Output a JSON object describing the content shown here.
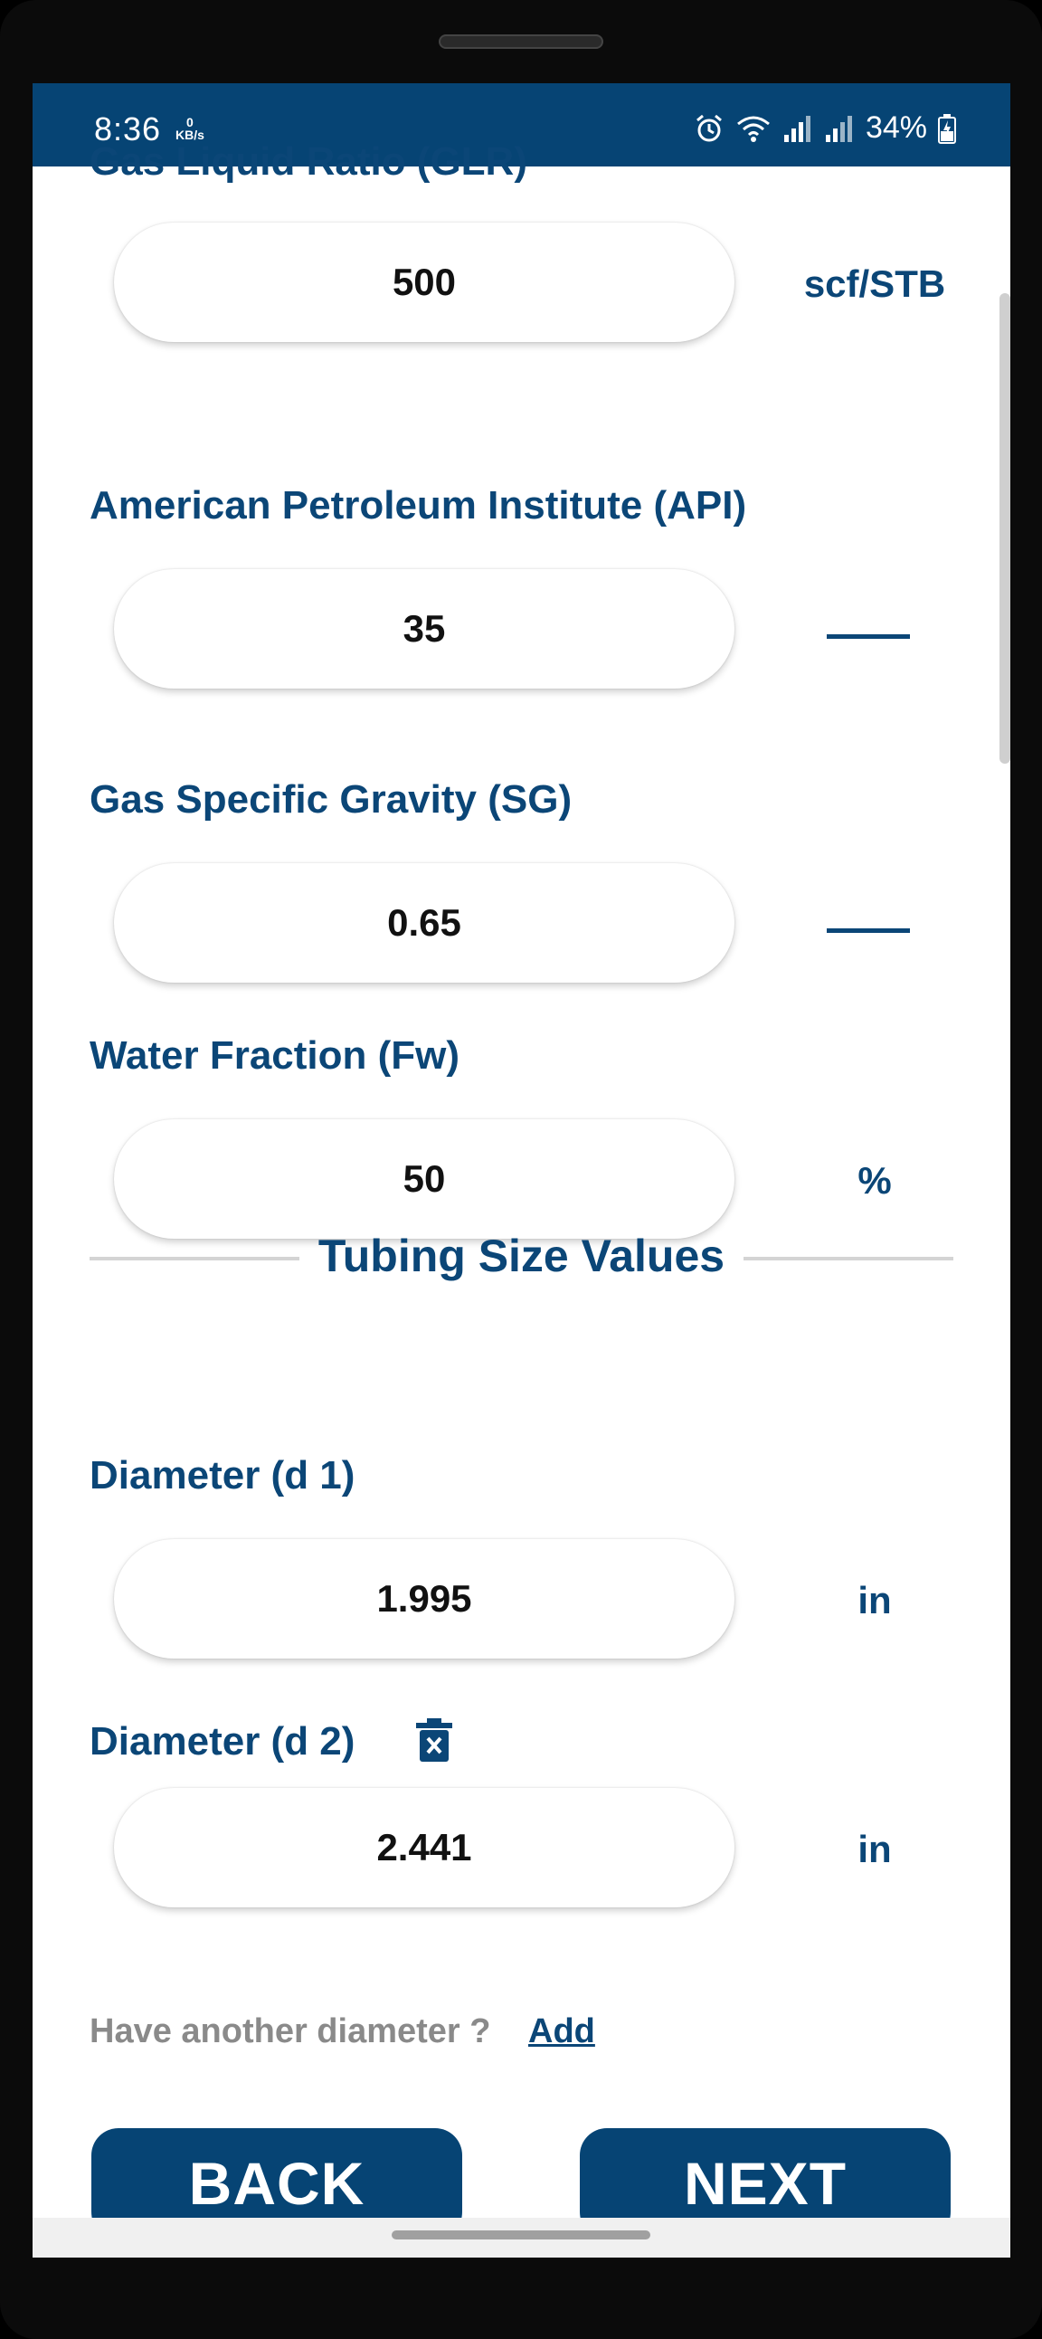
{
  "status_bar": {
    "time": "8:36",
    "net_speed_value": "0",
    "net_speed_unit": "KB/s",
    "battery": "34%"
  },
  "fields": {
    "glr": {
      "label": "Gas Liquid Ratio (GLR)",
      "value": "500",
      "unit": "scf/STB"
    },
    "api": {
      "label": "American Petroleum Institute (API)",
      "value": "35",
      "unit": ""
    },
    "sg": {
      "label": "Gas Specific Gravity (SG)",
      "value": "0.65",
      "unit": ""
    },
    "fw": {
      "label": "Water Fraction (Fw)",
      "value": "50",
      "unit": "%"
    }
  },
  "tubing": {
    "section_title": "Tubing Size Values",
    "d1": {
      "label": "Diameter (d 1)",
      "value": "1.995",
      "unit": "in"
    },
    "d2": {
      "label": "Diameter (d 2)",
      "value": "2.441",
      "unit": "in"
    },
    "another_prompt": "Have another diameter ?",
    "add_label": "Add"
  },
  "buttons": {
    "back": "BACK",
    "next": "NEXT"
  },
  "icons": {
    "delete": "trash-icon",
    "alarm": "alarm-icon",
    "wifi": "wifi-icon",
    "signal": "signal-icon",
    "battery": "battery-charging-icon"
  },
  "colors": {
    "primary": "#064474",
    "text_primary": "#0b4677",
    "hint": "#8a8a8a"
  }
}
